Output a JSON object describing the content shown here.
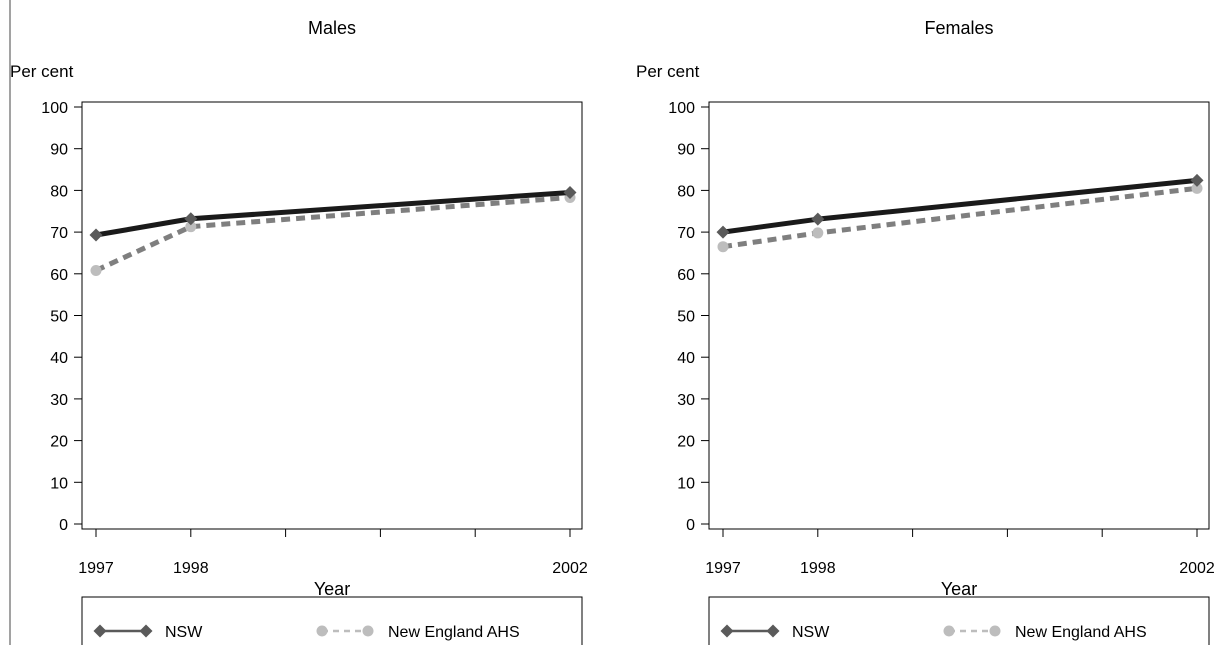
{
  "chart_data": [
    {
      "type": "line",
      "title": "Males",
      "ylabel": "Per cent",
      "xlabel": "Year",
      "ylim": [
        0,
        100
      ],
      "yticks": [
        0,
        10,
        20,
        30,
        40,
        50,
        60,
        70,
        80,
        90,
        100
      ],
      "xlim": [
        1997,
        2002
      ],
      "xticks": [
        1997,
        1998,
        1999,
        2000,
        2001,
        2002
      ],
      "xtick_labels": [
        "1997",
        "1998",
        "",
        "",
        "",
        "2002"
      ],
      "legend_position": "bottom",
      "series": [
        {
          "name": "NSW",
          "x": [
            1997,
            1998,
            2002
          ],
          "values": [
            69.3,
            73.2,
            79.5
          ],
          "color": "#1a1a1a",
          "marker": "diamond",
          "marker_color": "#5a5a5a",
          "line_style": "solid"
        },
        {
          "name": "New England AHS",
          "x": [
            1997,
            1998,
            2002
          ],
          "values": [
            60.8,
            71.3,
            78.3
          ],
          "color": "#7f7f7f",
          "marker": "circle",
          "marker_color": "#bdbdbd",
          "line_style": "dashed"
        }
      ]
    },
    {
      "type": "line",
      "title": "Females",
      "ylabel": "Per cent",
      "xlabel": "Year",
      "ylim": [
        0,
        100
      ],
      "yticks": [
        0,
        10,
        20,
        30,
        40,
        50,
        60,
        70,
        80,
        90,
        100
      ],
      "xlim": [
        1997,
        2002
      ],
      "xticks": [
        1997,
        1998,
        1999,
        2000,
        2001,
        2002
      ],
      "xtick_labels": [
        "1997",
        "1998",
        "",
        "",
        "",
        "2002"
      ],
      "legend_position": "bottom",
      "series": [
        {
          "name": "NSW",
          "x": [
            1997,
            1998,
            2002
          ],
          "values": [
            70.0,
            73.1,
            82.4
          ],
          "color": "#1a1a1a",
          "marker": "diamond",
          "marker_color": "#5a5a5a",
          "line_style": "solid"
        },
        {
          "name": "New England AHS",
          "x": [
            1997,
            1998,
            2002
          ],
          "values": [
            66.5,
            69.8,
            80.5
          ],
          "color": "#7f7f7f",
          "marker": "circle",
          "marker_color": "#bdbdbd",
          "line_style": "dashed"
        }
      ]
    }
  ]
}
